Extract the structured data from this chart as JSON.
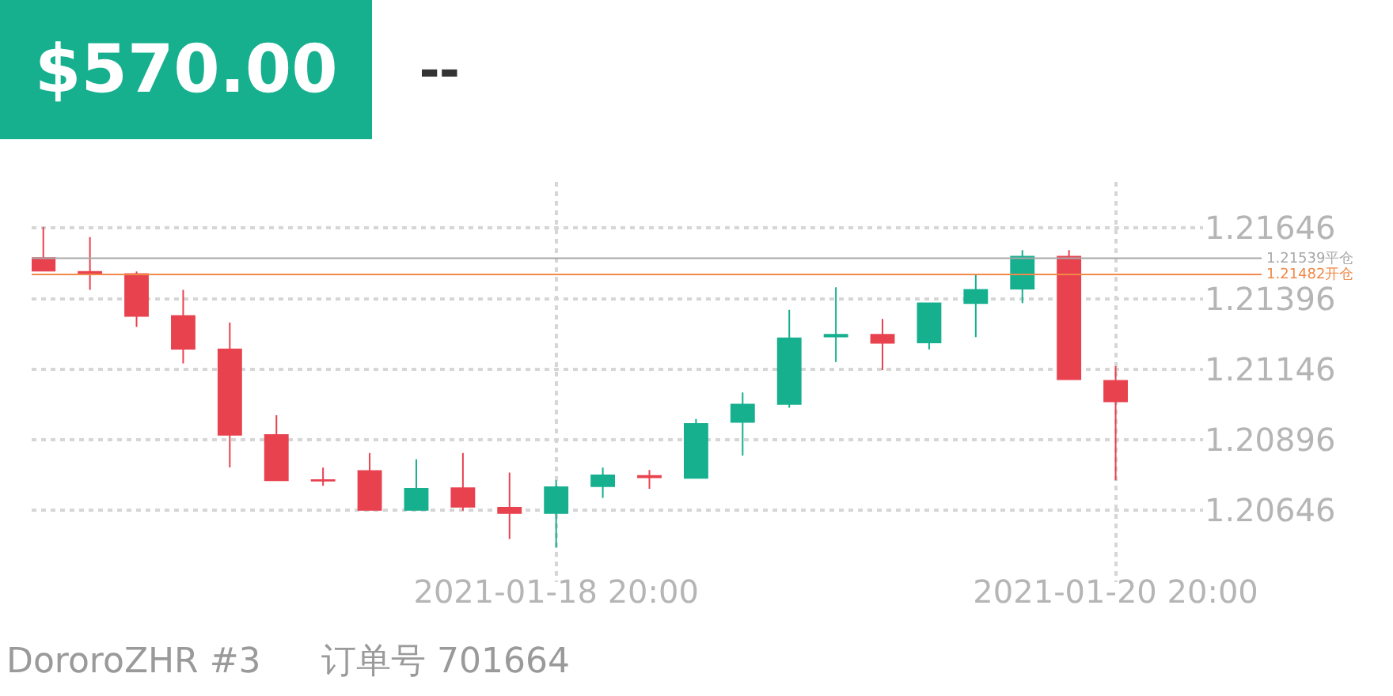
{
  "chart_data": {
    "type": "candlestick",
    "title": "$570.00",
    "subtitle": "--",
    "x": [
      "2021-01-17T00:00",
      "2021-01-17T04:00",
      "2021-01-17T08:00",
      "2021-01-17T12:00",
      "2021-01-17T16:00",
      "2021-01-17T20:00",
      "2021-01-18T00:00",
      "2021-01-18T04:00",
      "2021-01-18T08:00",
      "2021-01-18T12:00",
      "2021-01-18T16:00",
      "2021-01-18T20:00",
      "2021-01-19T00:00",
      "2021-01-19T04:00",
      "2021-01-19T08:00",
      "2021-01-19T12:00",
      "2021-01-19T16:00",
      "2021-01-19T20:00",
      "2021-01-20T00:00",
      "2021-01-20T04:00",
      "2021-01-20T08:00",
      "2021-01-20T12:00",
      "2021-01-20T16:00",
      "2021-01-20T20:00"
    ],
    "ohlc": [
      [
        1.2154,
        1.2165,
        1.21495,
        1.21495
      ],
      [
        1.21491,
        1.21614,
        1.21427,
        1.21485
      ],
      [
        1.21483,
        1.21492,
        1.21296,
        1.21334
      ],
      [
        1.21334,
        1.21427,
        1.21166,
        1.21218
      ],
      [
        1.21216,
        1.21311,
        1.20797,
        1.20913
      ],
      [
        1.20912,
        1.20982,
        1.20751,
        1.20751
      ],
      [
        1.20752,
        1.20796,
        1.20732,
        1.2075
      ],
      [
        1.20784,
        1.20848,
        1.20646,
        1.20646
      ],
      [
        1.20646,
        1.20826,
        1.20643,
        1.20721
      ],
      [
        1.20723,
        1.20848,
        1.20643,
        1.20657
      ],
      [
        1.20654,
        1.20779,
        1.20543,
        1.20635
      ],
      [
        1.20635,
        1.20751,
        1.20512,
        1.20727
      ],
      [
        1.2073,
        1.20796,
        1.20689,
        1.20769
      ],
      [
        1.20767,
        1.20788,
        1.20721,
        1.20762
      ],
      [
        1.2076,
        1.20969,
        1.2076,
        1.20951
      ],
      [
        1.20958,
        1.21063,
        1.20839,
        1.2102
      ],
      [
        1.21022,
        1.21356,
        1.21009,
        1.21255
      ],
      [
        1.21261,
        1.21436,
        1.21171,
        1.21268
      ],
      [
        1.21268,
        1.21324,
        1.21142,
        1.21239
      ],
      [
        1.2124,
        1.21379,
        1.21216,
        1.21379
      ],
      [
        1.2138,
        1.21483,
        1.21259,
        1.21427
      ],
      [
        1.21431,
        1.21568,
        1.2138,
        1.21545
      ],
      [
        1.21545,
        1.21568,
        1.2111,
        1.2111
      ],
      [
        1.21104,
        1.21156,
        1.20751,
        1.21031
      ]
    ],
    "colors": [
      "#e8424f",
      "#e8424f",
      "#e8424f",
      "#e8424f",
      "#e8424f",
      "#e8424f",
      "#e8424f",
      "#e8424f",
      "#16b08f",
      "#e8424f",
      "#e8424f",
      "#16b08f",
      "#16b08f",
      "#e8424f",
      "#16b08f",
      "#16b08f",
      "#16b08f",
      "#16b08f",
      "#e8424f",
      "#16b08f",
      "#16b08f",
      "#16b08f",
      "#e8424f",
      "#e8424f"
    ],
    "xlim": [
      "2021-01-16T23:00",
      "2021-01-21T03:30"
    ],
    "xticks": [
      {
        "value": "2021-01-18T20:00",
        "label": "2021-01-18 20:00"
      },
      {
        "value": "2021-01-20T20:00",
        "label": "2021-01-20 20:00"
      }
    ],
    "ylim": [
      1.2039,
      1.2181
    ],
    "yticks": [
      1.20646,
      1.20896,
      1.21146,
      1.21396,
      1.21646
    ],
    "grid": true,
    "legend": false,
    "ref_lines": [
      {
        "axis": "y",
        "value": 1.21539,
        "label": "1.21539平仓",
        "color": "#a8a8a8"
      },
      {
        "axis": "y",
        "value": 1.21482,
        "label": "1.21482开仓",
        "color": "#f0894a"
      }
    ],
    "annotations": [
      "DororoZHR #3",
      "订单号 701664"
    ]
  }
}
